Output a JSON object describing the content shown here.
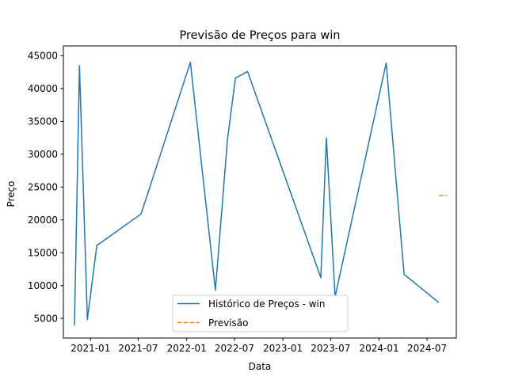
{
  "chart_data": {
    "type": "line",
    "title": "Previsão de Preços para win",
    "xlabel": "Data",
    "ylabel": "Preço",
    "x_ticks": [
      "2021-01",
      "2021-07",
      "2022-01",
      "2022-07",
      "2023-01",
      "2023-07",
      "2024-01",
      "2024-07"
    ],
    "y_ticks": [
      5000,
      10000,
      15000,
      20000,
      25000,
      30000,
      35000,
      40000,
      45000
    ],
    "xlim": [
      "2020-09-20",
      "2024-10-20"
    ],
    "ylim": [
      2000,
      46500
    ],
    "grid": false,
    "legend_position": "bottom-center",
    "series": [
      {
        "name": "Histórico de Preços - win",
        "color": "#1f77b4",
        "style": "solid",
        "points": [
          {
            "x": "2020-11-01",
            "y": 3900
          },
          {
            "x": "2020-11-20",
            "y": 43500
          },
          {
            "x": "2020-12-20",
            "y": 4800
          },
          {
            "x": "2021-01-25",
            "y": 16100
          },
          {
            "x": "2021-07-12",
            "y": 20900
          },
          {
            "x": "2022-01-15",
            "y": 44000
          },
          {
            "x": "2022-04-20",
            "y": 9300
          },
          {
            "x": "2022-06-05",
            "y": 32300
          },
          {
            "x": "2022-07-05",
            "y": 41600
          },
          {
            "x": "2022-08-20",
            "y": 42600
          },
          {
            "x": "2023-05-25",
            "y": 11200
          },
          {
            "x": "2023-06-15",
            "y": 32500
          },
          {
            "x": "2023-07-18",
            "y": 8300
          },
          {
            "x": "2024-01-28",
            "y": 43900
          },
          {
            "x": "2024-04-05",
            "y": 11700
          },
          {
            "x": "2024-08-15",
            "y": 7400
          }
        ]
      },
      {
        "name": "Previsão",
        "color": "#ff7f0e",
        "style": "dashed",
        "points": [
          {
            "x": "2024-08-15",
            "y": 23700
          },
          {
            "x": "2024-09-15",
            "y": 23700
          }
        ]
      }
    ]
  }
}
